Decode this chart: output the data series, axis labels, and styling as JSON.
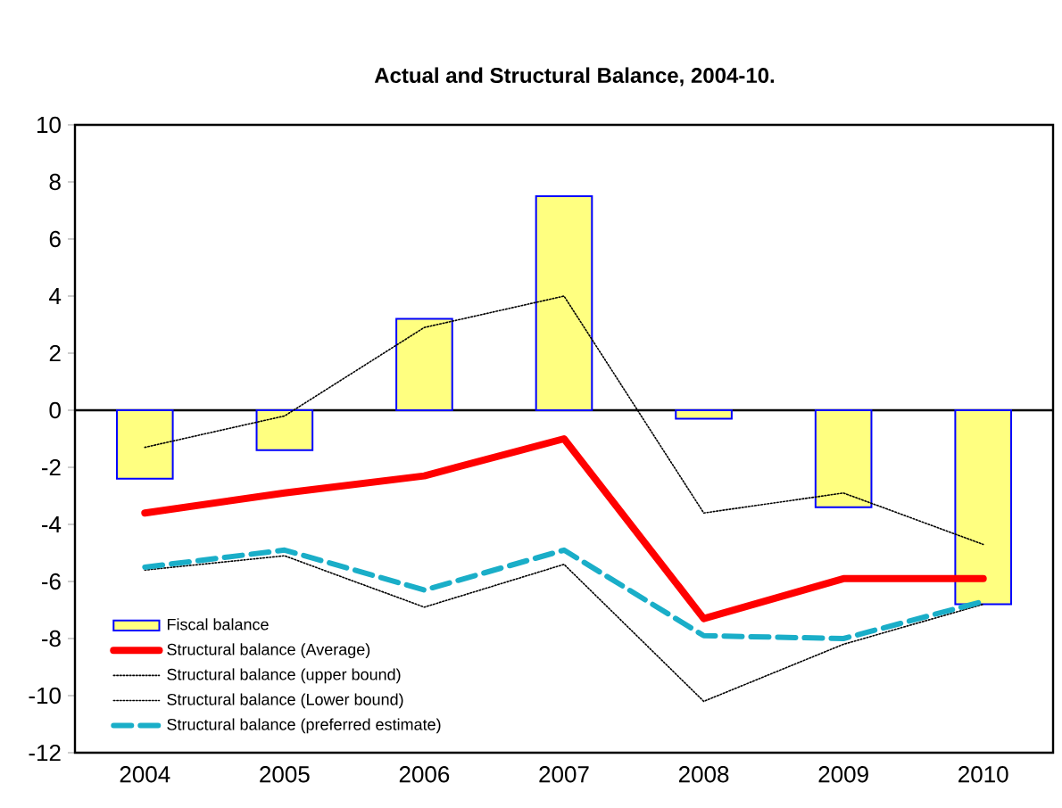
{
  "chart_data": {
    "type": "line",
    "title": "Actual and Structural Balance, 2004-10.",
    "categories": [
      "2004",
      "2005",
      "2006",
      "2007",
      "2008",
      "2009",
      "2010"
    ],
    "series": [
      {
        "name": "Fiscal balance",
        "type": "bar",
        "color": "#ffff80",
        "values": [
          -2.4,
          -1.4,
          3.2,
          7.5,
          -0.3,
          -3.4,
          -6.8
        ]
      },
      {
        "name": "Structural balance (Average)",
        "color": "#ff0000",
        "line_style": "solid",
        "values": [
          -3.6,
          -2.9,
          -2.3,
          -1.0,
          -7.3,
          -5.9,
          -5.9
        ]
      },
      {
        "name": "Structural balance (upper bound)",
        "color": "#000000",
        "line_style": "dotted",
        "values": [
          -1.3,
          -0.2,
          2.9,
          4.0,
          -3.6,
          -2.9,
          -4.7
        ]
      },
      {
        "name": "Structural balance (Lower bound)",
        "color": "#000000",
        "line_style": "dotted",
        "values": [
          -5.6,
          -5.1,
          -6.9,
          -5.4,
          -10.2,
          -8.2,
          -6.8
        ]
      },
      {
        "name": "Structural balance (preferred estimate)",
        "color": "#1aaec8",
        "line_style": "dashed",
        "values": [
          -5.5,
          -4.9,
          -6.3,
          -4.9,
          -7.9,
          -8.0,
          -6.7
        ]
      }
    ],
    "ylim": [
      -12,
      10
    ],
    "yticks": [
      -12,
      -10,
      -8,
      -6,
      -4,
      -2,
      0,
      2,
      4,
      6,
      8,
      10
    ],
    "legend": "bottom left"
  }
}
